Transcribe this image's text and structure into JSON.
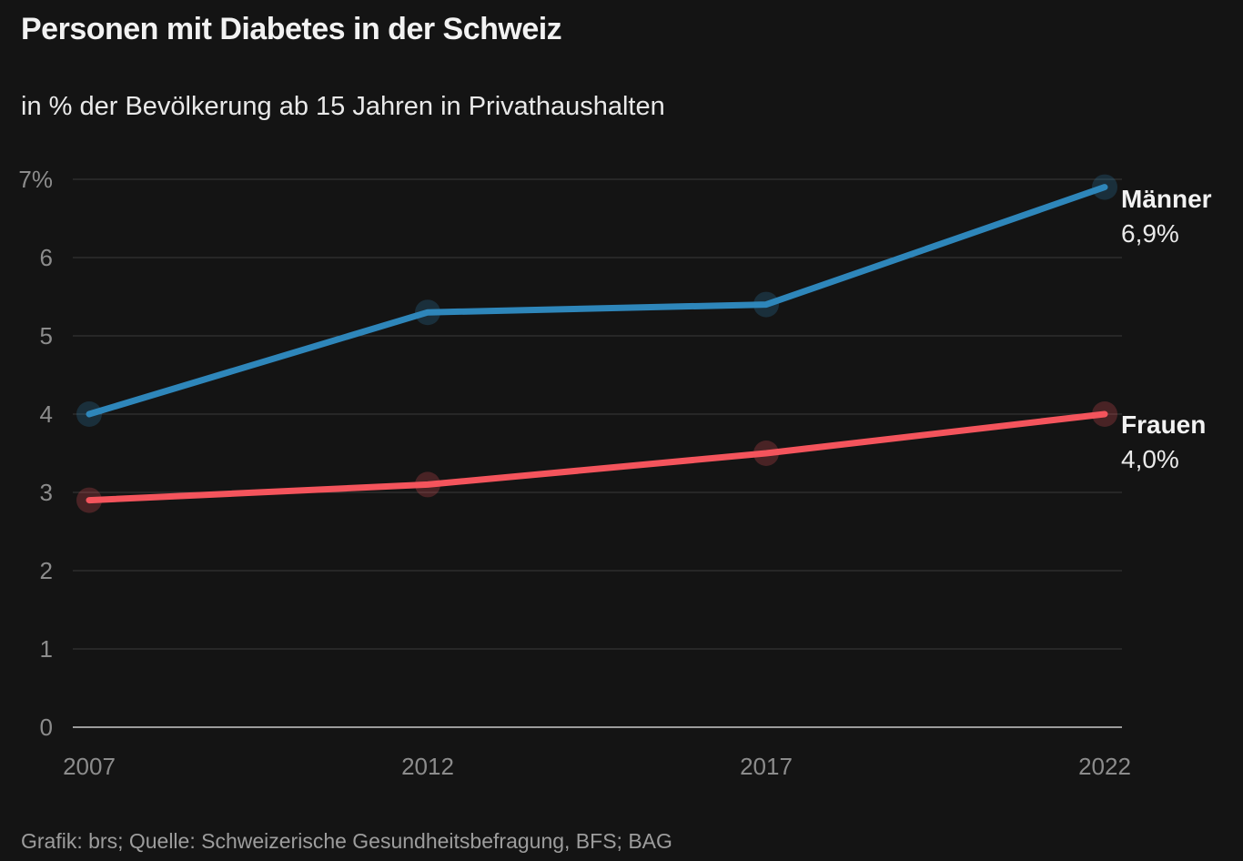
{
  "title": "Personen mit Diabetes in der Schweiz",
  "subtitle": "in % der Bevölkerung ab 15 Jahren in Privathaushalten",
  "source": "Grafik: brs; Quelle: Schweizerische Gesundheitsbefragung, BFS; BAG",
  "colors": {
    "background": "#141414",
    "grid": "#3a3a3a",
    "baseline": "#9c9c9c",
    "tick_label": "#8c8c8c",
    "title_text": "#f2f2f2",
    "maenner_blue": "#2e86ba",
    "frauen_red": "#f4545c"
  },
  "chart_data": {
    "type": "line",
    "title": "Personen mit Diabetes in der Schweiz",
    "subtitle": "in % der Bevölkerung ab 15 Jahren in Privathaushalten",
    "source": "Grafik: brs; Quelle: Schweizerische Gesundheitsbefragung, BFS; BAG",
    "x": [
      2007,
      2012,
      2017,
      2022
    ],
    "x_tick_labels": [
      "2007",
      "2012",
      "2017",
      "2022"
    ],
    "y_tick_labels": [
      "0",
      "1",
      "2",
      "3",
      "4",
      "5",
      "6",
      "7%"
    ],
    "ylim": [
      0,
      7
    ],
    "xlabel": "",
    "ylabel": "",
    "grid": true,
    "legend_position": "line-end-labels",
    "series": [
      {
        "name": "Männer",
        "color": "#2e86ba",
        "values": [
          4.0,
          5.3,
          5.4,
          6.9
        ],
        "end_label": "6,9%"
      },
      {
        "name": "Frauen",
        "color": "#f4545c",
        "values": [
          2.9,
          3.1,
          3.5,
          4.0
        ],
        "end_label": "4,0%"
      }
    ]
  }
}
